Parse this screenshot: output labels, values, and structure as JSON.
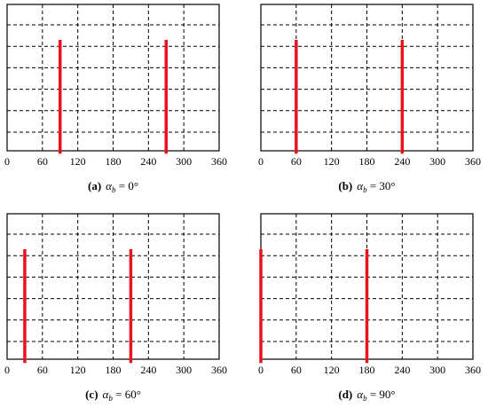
{
  "chart_data": [
    {
      "type": "line",
      "panel_label": "(a)",
      "caption_symbol": "α",
      "caption_subscript": "b",
      "caption_value": " = 0°",
      "x_ticks": [
        "0",
        "60",
        "120",
        "180",
        "240",
        "300",
        "360"
      ],
      "xlim": [
        0,
        360
      ],
      "ylim": [
        0,
        6
      ],
      "grid": true,
      "line_color": "#e8141c",
      "series": [
        {
          "x": [
            90,
            90
          ],
          "y": [
            0,
            5.3
          ]
        },
        {
          "x": [
            270,
            270
          ],
          "y": [
            0,
            5.3
          ]
        }
      ]
    },
    {
      "type": "line",
      "panel_label": "(b)",
      "caption_symbol": "α",
      "caption_subscript": "b",
      "caption_value": " = 30°",
      "x_ticks": [
        "0",
        "60",
        "120",
        "180",
        "240",
        "300",
        "360"
      ],
      "xlim": [
        0,
        360
      ],
      "ylim": [
        0,
        6
      ],
      "grid": true,
      "line_color": "#e8141c",
      "series": [
        {
          "x": [
            60,
            60
          ],
          "y": [
            0,
            5.3
          ]
        },
        {
          "x": [
            240,
            240
          ],
          "y": [
            0,
            5.3
          ]
        }
      ]
    },
    {
      "type": "line",
      "panel_label": "(c)",
      "caption_symbol": "α",
      "caption_subscript": "b",
      "caption_value": " = 60°",
      "x_ticks": [
        "0",
        "60",
        "120",
        "180",
        "240",
        "300",
        "360"
      ],
      "xlim": [
        0,
        360
      ],
      "ylim": [
        0,
        6
      ],
      "grid": true,
      "line_color": "#e8141c",
      "series": [
        {
          "x": [
            30,
            30
          ],
          "y": [
            0,
            5.3
          ]
        },
        {
          "x": [
            210,
            210
          ],
          "y": [
            0,
            5.3
          ]
        }
      ]
    },
    {
      "type": "line",
      "panel_label": "(d)",
      "caption_symbol": "α",
      "caption_subscript": "b",
      "caption_value": " = 90°",
      "x_ticks": [
        "0",
        "60",
        "120",
        "180",
        "240",
        "300",
        "360"
      ],
      "xlim": [
        0,
        360
      ],
      "ylim": [
        0,
        6
      ],
      "grid": true,
      "line_color": "#e8141c",
      "series": [
        {
          "x": [
            0,
            0
          ],
          "y": [
            0,
            5.3
          ]
        },
        {
          "x": [
            180,
            180
          ],
          "y": [
            0,
            5.3
          ]
        }
      ]
    }
  ]
}
